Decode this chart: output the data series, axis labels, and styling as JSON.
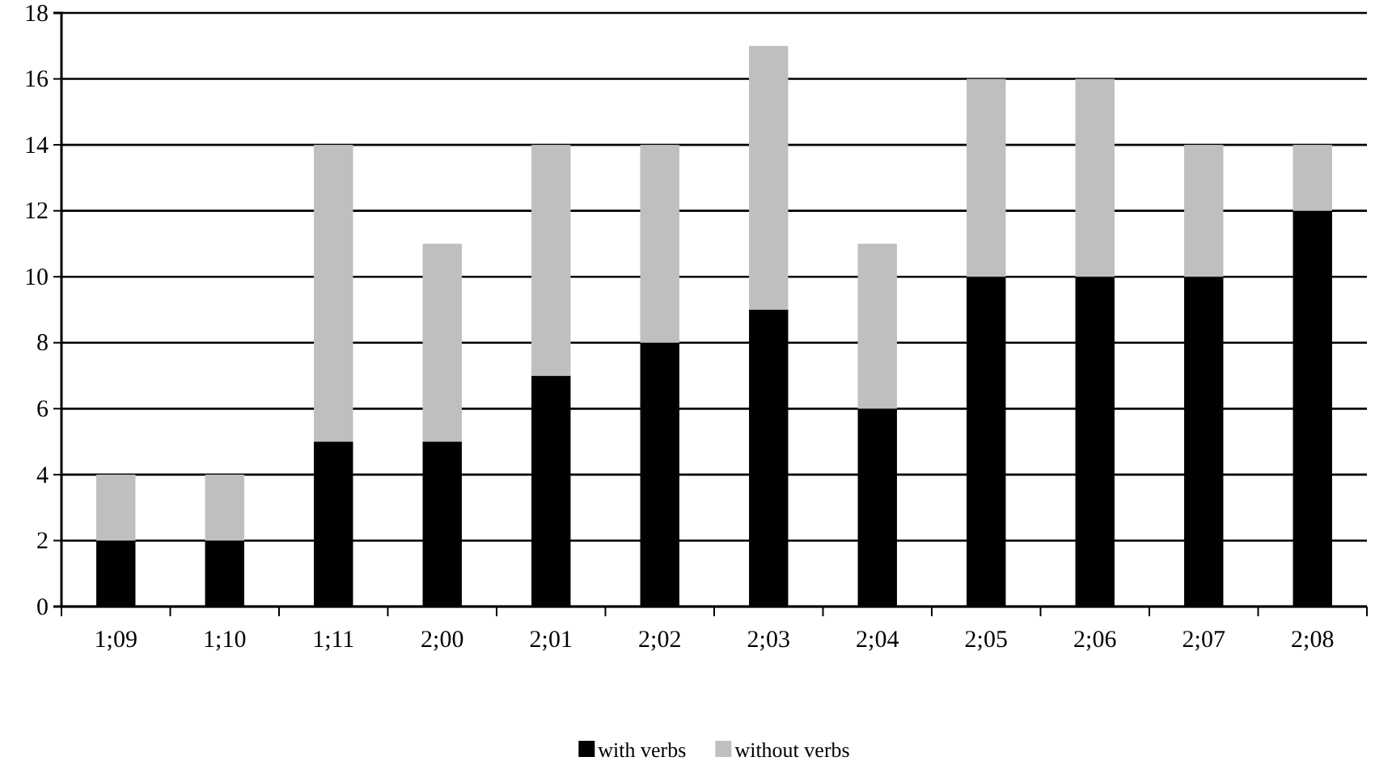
{
  "chart_data": {
    "type": "bar",
    "stacked": true,
    "categories": [
      "1;09",
      "1;10",
      "1;11",
      "2;00",
      "2;01",
      "2;02",
      "2;03",
      "2;04",
      "2;05",
      "2;06",
      "2;07",
      "2;08"
    ],
    "series": [
      {
        "name": "with verbs",
        "color": "#000000",
        "values": [
          2,
          2,
          5,
          5,
          7,
          8,
          9,
          6,
          10,
          10,
          10,
          12
        ]
      },
      {
        "name": "without verbs",
        "color": "#bfbfbf",
        "values": [
          2,
          2,
          9,
          6,
          7,
          6,
          8,
          5,
          6,
          6,
          4,
          2
        ]
      }
    ],
    "ylim": [
      0,
      18
    ],
    "yticks": [
      0,
      2,
      4,
      6,
      8,
      10,
      12,
      14,
      16,
      18
    ],
    "grid": "y",
    "legend": "bottom"
  }
}
